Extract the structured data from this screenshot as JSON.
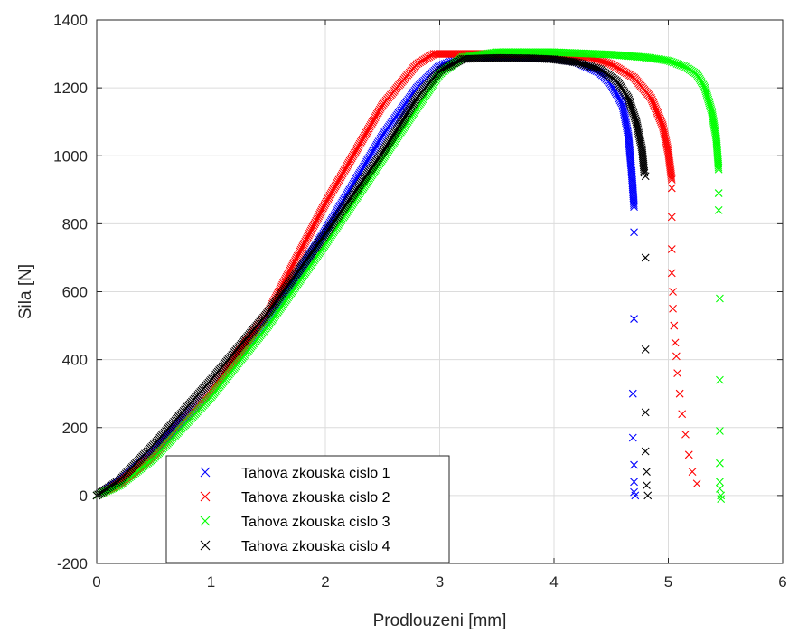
{
  "chart_data": {
    "type": "scatter",
    "marker": "x",
    "xlabel": "Prodlouzeni [mm]",
    "ylabel": "Sila [N]",
    "xlim": [
      0,
      6
    ],
    "ylim": [
      -200,
      1400
    ],
    "xticks": [
      0,
      1,
      2,
      3,
      4,
      5,
      6
    ],
    "yticks": [
      -200,
      0,
      200,
      400,
      600,
      800,
      1000,
      1200,
      1400
    ],
    "grid": true,
    "legend_position": "bottom-left",
    "series": [
      {
        "name": "Tahova zkouska cislo 1",
        "color": "#0000ff",
        "curve": [
          [
            0,
            0
          ],
          [
            0.2,
            40
          ],
          [
            0.5,
            130
          ],
          [
            1.0,
            310
          ],
          [
            1.5,
            520
          ],
          [
            2.0,
            780
          ],
          [
            2.5,
            1060
          ],
          [
            2.8,
            1200
          ],
          [
            3.0,
            1265
          ],
          [
            3.2,
            1290
          ],
          [
            3.5,
            1292
          ],
          [
            3.8,
            1290
          ],
          [
            4.0,
            1285
          ],
          [
            4.2,
            1275
          ],
          [
            4.4,
            1245
          ],
          [
            4.5,
            1210
          ],
          [
            4.6,
            1150
          ],
          [
            4.65,
            1060
          ],
          [
            4.68,
            950
          ],
          [
            4.7,
            850
          ]
        ],
        "tail": [
          [
            4.7,
            775
          ],
          [
            4.7,
            520
          ],
          [
            4.69,
            300
          ],
          [
            4.69,
            170
          ],
          [
            4.7,
            90
          ],
          [
            4.7,
            40
          ],
          [
            4.7,
            10
          ],
          [
            4.71,
            0
          ]
        ]
      },
      {
        "name": "Tahova zkouska cislo 2",
        "color": "#ff0000",
        "curve": [
          [
            0,
            0
          ],
          [
            0.2,
            35
          ],
          [
            0.5,
            120
          ],
          [
            1.0,
            310
          ],
          [
            1.5,
            540
          ],
          [
            2.0,
            860
          ],
          [
            2.5,
            1150
          ],
          [
            2.8,
            1270
          ],
          [
            2.95,
            1300
          ],
          [
            3.2,
            1300
          ],
          [
            3.6,
            1300
          ],
          [
            4.0,
            1298
          ],
          [
            4.3,
            1290
          ],
          [
            4.5,
            1270
          ],
          [
            4.7,
            1230
          ],
          [
            4.85,
            1170
          ],
          [
            4.95,
            1090
          ],
          [
            5.0,
            1010
          ],
          [
            5.03,
            930
          ]
        ],
        "tail": [
          [
            5.03,
            905
          ],
          [
            5.03,
            820
          ],
          [
            5.03,
            725
          ],
          [
            5.03,
            655
          ],
          [
            5.04,
            600
          ],
          [
            5.04,
            550
          ],
          [
            5.05,
            500
          ],
          [
            5.06,
            450
          ],
          [
            5.07,
            410
          ],
          [
            5.08,
            360
          ],
          [
            5.1,
            300
          ],
          [
            5.12,
            240
          ],
          [
            5.15,
            180
          ],
          [
            5.18,
            120
          ],
          [
            5.21,
            70
          ],
          [
            5.25,
            35
          ]
        ]
      },
      {
        "name": "Tahova zkouska cislo 3",
        "color": "#00ff00",
        "curve": [
          [
            0,
            0
          ],
          [
            0.2,
            30
          ],
          [
            0.5,
            110
          ],
          [
            1.0,
            290
          ],
          [
            1.5,
            500
          ],
          [
            2.0,
            740
          ],
          [
            2.5,
            990
          ],
          [
            2.8,
            1140
          ],
          [
            3.0,
            1240
          ],
          [
            3.2,
            1290
          ],
          [
            3.5,
            1305
          ],
          [
            4.0,
            1305
          ],
          [
            4.5,
            1298
          ],
          [
            4.8,
            1290
          ],
          [
            5.0,
            1280
          ],
          [
            5.15,
            1262
          ],
          [
            5.25,
            1240
          ],
          [
            5.32,
            1200
          ],
          [
            5.38,
            1130
          ],
          [
            5.42,
            1050
          ],
          [
            5.44,
            960
          ]
        ],
        "tail": [
          [
            5.44,
            890
          ],
          [
            5.44,
            840
          ],
          [
            5.45,
            580
          ],
          [
            5.45,
            340
          ],
          [
            5.45,
            190
          ],
          [
            5.45,
            95
          ],
          [
            5.45,
            40
          ],
          [
            5.45,
            20
          ],
          [
            5.46,
            0
          ],
          [
            5.46,
            -10
          ]
        ]
      },
      {
        "name": "Tahova zkouska cislo 4",
        "color": "#000000",
        "curve": [
          [
            0,
            0
          ],
          [
            0.2,
            45
          ],
          [
            0.5,
            150
          ],
          [
            1.0,
            340
          ],
          [
            1.5,
            540
          ],
          [
            2.0,
            770
          ],
          [
            2.5,
            1010
          ],
          [
            2.8,
            1170
          ],
          [
            3.0,
            1250
          ],
          [
            3.2,
            1285
          ],
          [
            3.5,
            1288
          ],
          [
            3.8,
            1287
          ],
          [
            4.0,
            1284
          ],
          [
            4.2,
            1275
          ],
          [
            4.4,
            1255
          ],
          [
            4.55,
            1220
          ],
          [
            4.65,
            1170
          ],
          [
            4.72,
            1100
          ],
          [
            4.77,
            1020
          ],
          [
            4.79,
            950
          ]
        ],
        "tail": [
          [
            4.8,
            940
          ],
          [
            4.8,
            700
          ],
          [
            4.8,
            430
          ],
          [
            4.8,
            245
          ],
          [
            4.8,
            130
          ],
          [
            4.81,
            70
          ],
          [
            4.81,
            30
          ],
          [
            4.82,
            0
          ]
        ]
      }
    ]
  }
}
